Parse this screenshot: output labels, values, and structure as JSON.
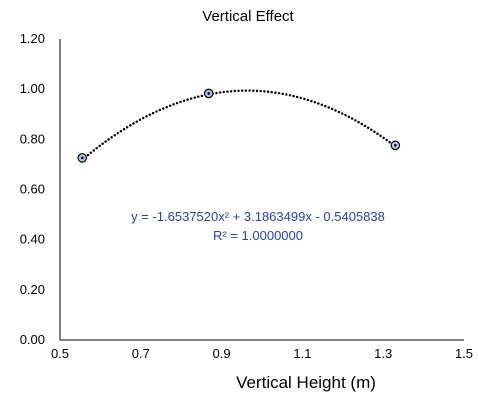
{
  "chart_data": {
    "type": "scatter",
    "title": "Vertical Effect",
    "xlabel": "Vertical Height (m)",
    "ylabel": "",
    "xlim": [
      0.5,
      1.5
    ],
    "ylim": [
      0.0,
      1.2
    ],
    "x_ticks": [
      "0.5",
      "0.7",
      "0.9",
      "1.1",
      "1.3",
      "1.5"
    ],
    "y_ticks": [
      "0.00",
      "0.20",
      "0.40",
      "0.60",
      "0.80",
      "1.00",
      "1.20"
    ],
    "grid": false,
    "series": [
      {
        "points": [
          {
            "x": 0.555,
            "y": 0.726
          },
          {
            "x": 0.868,
            "y": 0.983
          },
          {
            "x": 1.33,
            "y": 0.776
          }
        ],
        "marker_fill": "#aec5e8",
        "marker_edge": "#000000"
      }
    ],
    "trendline": {
      "type": "polynomial",
      "order": 2,
      "coefficients": [
        -1.653752,
        3.1863499,
        -0.5405838
      ],
      "style": "dotted",
      "color": "#000000",
      "equation_label": "y = -1.6537520x² + 3.1863499x - 0.5405838",
      "r2_label": "R² = 1.0000000",
      "label_color": "#1f3fd6"
    }
  }
}
